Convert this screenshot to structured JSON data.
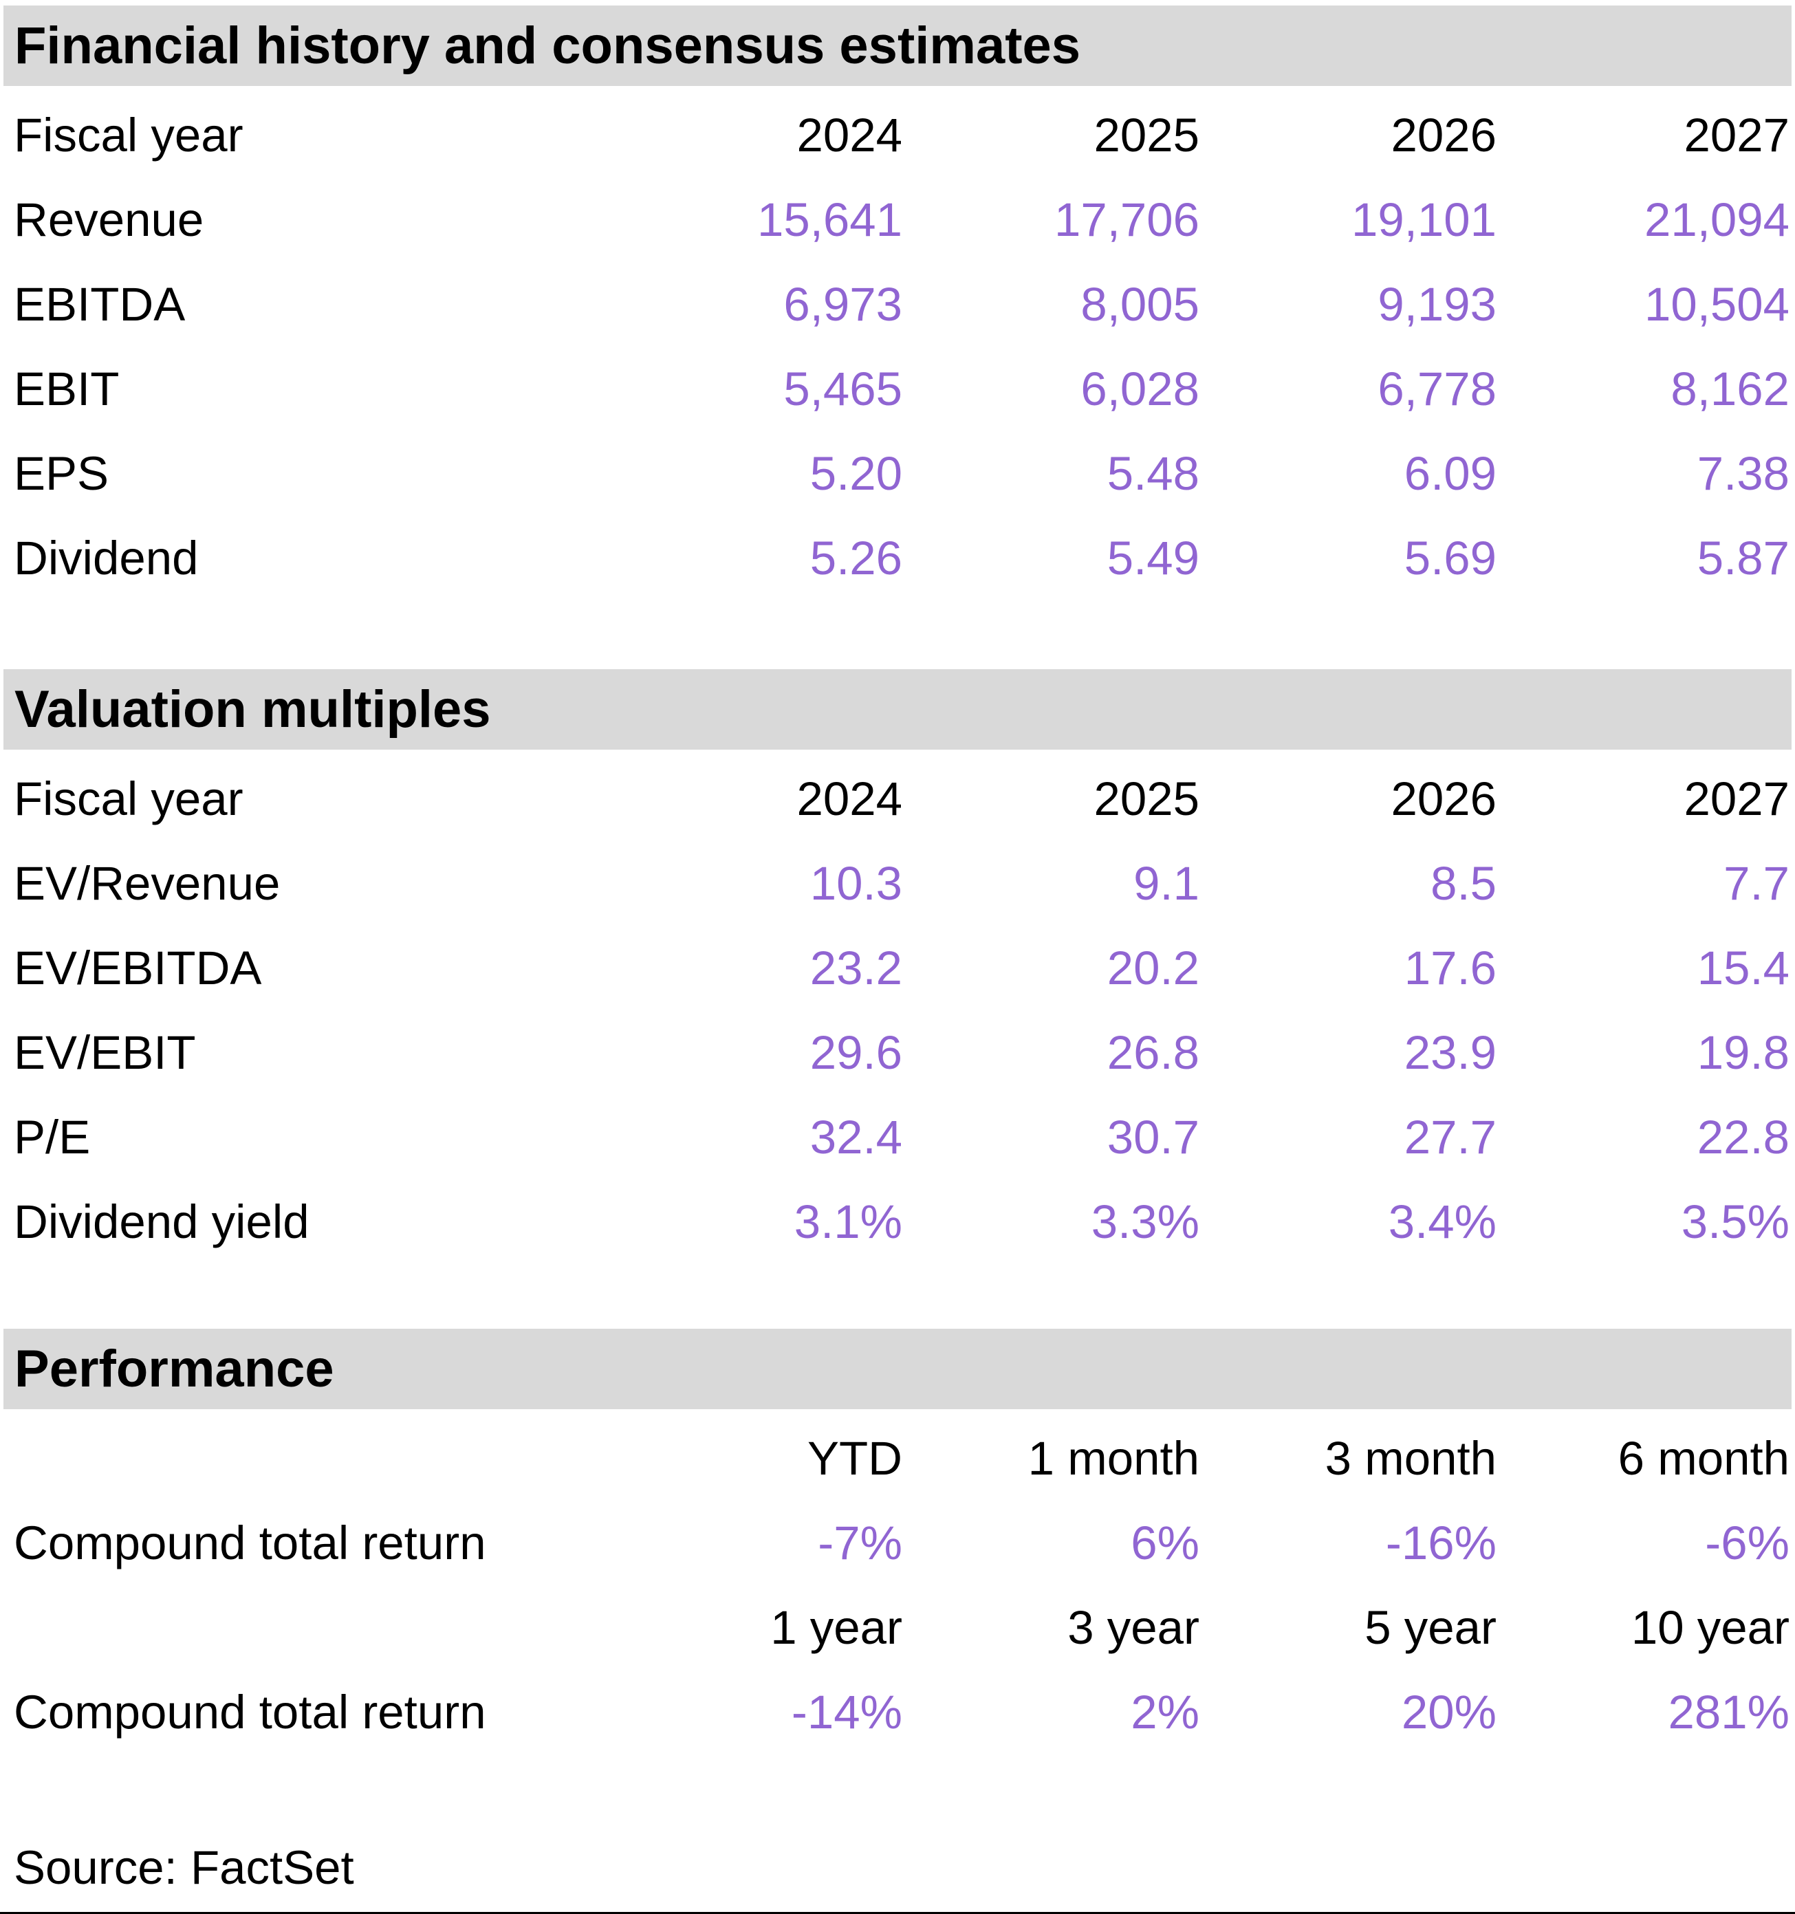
{
  "colors": {
    "accent_purple": "#9065D2",
    "section_header_bg": "#D9D9D9",
    "text": "#000000"
  },
  "financial_history": {
    "title": "Financial history and consensus estimates",
    "header": {
      "label": "Fiscal year",
      "cols": [
        "2024",
        "2025",
        "2026",
        "2027"
      ]
    },
    "rows": [
      {
        "label": "Revenue",
        "values": [
          "15,641",
          "17,706",
          "19,101",
          "21,094"
        ]
      },
      {
        "label": "EBITDA",
        "values": [
          "6,973",
          "8,005",
          "9,193",
          "10,504"
        ]
      },
      {
        "label": "EBIT",
        "values": [
          "5,465",
          "6,028",
          "6,778",
          "8,162"
        ]
      },
      {
        "label": "EPS",
        "values": [
          "5.20",
          "5.48",
          "6.09",
          "7.38"
        ]
      },
      {
        "label": "Dividend",
        "values": [
          "5.26",
          "5.49",
          "5.69",
          "5.87"
        ]
      }
    ]
  },
  "valuation_multiples": {
    "title": "Valuation multiples",
    "header": {
      "label": "Fiscal year",
      "cols": [
        "2024",
        "2025",
        "2026",
        "2027"
      ]
    },
    "rows": [
      {
        "label": "EV/Revenue",
        "values": [
          "10.3",
          "9.1",
          "8.5",
          "7.7"
        ]
      },
      {
        "label": "EV/EBITDA",
        "values": [
          "23.2",
          "20.2",
          "17.6",
          "15.4"
        ]
      },
      {
        "label": "EV/EBIT",
        "values": [
          "29.6",
          "26.8",
          "23.9",
          "19.8"
        ]
      },
      {
        "label": "P/E",
        "values": [
          "32.4",
          "30.7",
          "27.7",
          "22.8"
        ]
      },
      {
        "label": "Dividend yield",
        "values": [
          "3.1%",
          "3.3%",
          "3.4%",
          "3.5%"
        ]
      }
    ]
  },
  "performance": {
    "title": "Performance",
    "groups": [
      {
        "cols": [
          "YTD",
          "1 month",
          "3 month",
          "6 month"
        ],
        "row": {
          "label": "Compound total return",
          "values": [
            "-7%",
            "6%",
            "-16%",
            "-6%"
          ]
        }
      },
      {
        "cols": [
          "1 year",
          "3 year",
          "5 year",
          "10 year"
        ],
        "row": {
          "label": "Compound total return",
          "values": [
            "-14%",
            "2%",
            "20%",
            "281%"
          ]
        }
      }
    ]
  },
  "footer": {
    "source_note": "Source: FactSet"
  }
}
